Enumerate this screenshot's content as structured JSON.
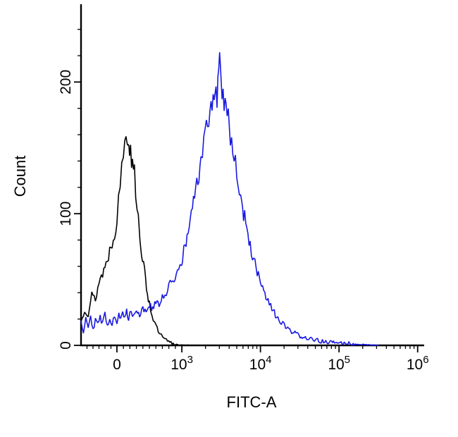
{
  "chart_data": {
    "type": "line",
    "subtype": "flow-cytometry-histogram-overlay",
    "title": "",
    "xlabel": "FITC-A",
    "ylabel": "Count",
    "grid": false,
    "legend": "none",
    "background": "#ffffff",
    "axis_color": "#000000",
    "x_scale": {
      "type": "logicle",
      "anchors": [
        {
          "x": -300,
          "t": 0.0
        },
        {
          "x": 0,
          "t": 0.105
        },
        {
          "x": 1000,
          "t": 0.295
        },
        {
          "x": 1000000,
          "t": 0.985
        }
      ],
      "decade_t": 0.23
    },
    "ylim": [
      0,
      258
    ],
    "y_ticks": [
      {
        "value": 0,
        "label": "0"
      },
      {
        "value": 100,
        "label": "100"
      },
      {
        "value": 200,
        "label": "200"
      }
    ],
    "y_minor_step": 20,
    "x_ticks": [
      {
        "value": 0,
        "base": "0",
        "exp": ""
      },
      {
        "value": 1000,
        "base": "10",
        "exp": "3"
      },
      {
        "value": 10000,
        "base": "10",
        "exp": "4"
      },
      {
        "value": 100000,
        "base": "10",
        "exp": "5"
      },
      {
        "value": 1000000,
        "base": "10",
        "exp": "6"
      }
    ],
    "x_minor_linear": [
      -250,
      -200,
      -150,
      -100,
      -50,
      100,
      200,
      300,
      400,
      500,
      600,
      700,
      800,
      900
    ],
    "x_minor_log_decades": [
      1000,
      10000,
      100000
    ],
    "series": [
      {
        "id": "black",
        "color": "#000000",
        "peak_x": 150,
        "peak_count": 163,
        "points": [
          [
            -300,
            18
          ],
          [
            -270,
            28
          ],
          [
            -240,
            24
          ],
          [
            -210,
            38
          ],
          [
            -180,
            35
          ],
          [
            -150,
            48
          ],
          [
            -120,
            55
          ],
          [
            -90,
            62
          ],
          [
            -60,
            72
          ],
          [
            -30,
            82
          ],
          [
            0,
            95
          ],
          [
            25,
            108
          ],
          [
            50,
            122
          ],
          [
            75,
            135
          ],
          [
            100,
            148
          ],
          [
            120,
            158
          ],
          [
            140,
            163
          ],
          [
            155,
            150
          ],
          [
            165,
            162
          ],
          [
            175,
            152
          ],
          [
            185,
            160
          ],
          [
            195,
            150
          ],
          [
            210,
            154
          ],
          [
            225,
            142
          ],
          [
            240,
            148
          ],
          [
            255,
            138
          ],
          [
            270,
            130
          ],
          [
            290,
            118
          ],
          [
            310,
            108
          ],
          [
            330,
            96
          ],
          [
            355,
            84
          ],
          [
            380,
            72
          ],
          [
            410,
            60
          ],
          [
            440,
            50
          ],
          [
            470,
            40
          ],
          [
            500,
            32
          ],
          [
            540,
            24
          ],
          [
            580,
            17
          ],
          [
            620,
            12
          ],
          [
            670,
            8
          ],
          [
            720,
            5
          ],
          [
            780,
            3
          ],
          [
            850,
            1.5
          ],
          [
            950,
            0.5
          ],
          [
            1050,
            0
          ],
          [
            1300,
            0
          ]
        ]
      },
      {
        "id": "blue",
        "color": "#1a1ae0",
        "peak_x": 2950,
        "peak_count": 216,
        "points": [
          [
            -300,
            20
          ],
          [
            -280,
            10
          ],
          [
            -260,
            22
          ],
          [
            -240,
            14
          ],
          [
            -220,
            24
          ],
          [
            -200,
            12
          ],
          [
            -180,
            20
          ],
          [
            -160,
            15
          ],
          [
            -140,
            22
          ],
          [
            -120,
            16
          ],
          [
            -100,
            24
          ],
          [
            -80,
            15
          ],
          [
            -60,
            21
          ],
          [
            -40,
            17
          ],
          [
            -20,
            23
          ],
          [
            0,
            18
          ],
          [
            30,
            24
          ],
          [
            60,
            19
          ],
          [
            90,
            25
          ],
          [
            120,
            20
          ],
          [
            150,
            26
          ],
          [
            180,
            21
          ],
          [
            220,
            27
          ],
          [
            260,
            22
          ],
          [
            300,
            28
          ],
          [
            350,
            23
          ],
          [
            400,
            29
          ],
          [
            450,
            25
          ],
          [
            500,
            31
          ],
          [
            550,
            27
          ],
          [
            600,
            33
          ],
          [
            650,
            30
          ],
          [
            700,
            36
          ],
          [
            760,
            40
          ],
          [
            820,
            46
          ],
          [
            880,
            52
          ],
          [
            950,
            58
          ],
          [
            1020,
            66
          ],
          [
            1100,
            75
          ],
          [
            1200,
            86
          ],
          [
            1320,
            98
          ],
          [
            1450,
            112
          ],
          [
            1600,
            126
          ],
          [
            1750,
            140
          ],
          [
            1900,
            152
          ],
          [
            2050,
            163
          ],
          [
            2200,
            172
          ],
          [
            2350,
            182
          ],
          [
            2500,
            190
          ],
          [
            2650,
            196
          ],
          [
            2800,
            188
          ],
          [
            2950,
            216
          ],
          [
            3100,
            205
          ],
          [
            3250,
            196
          ],
          [
            3450,
            190
          ],
          [
            3650,
            182
          ],
          [
            3900,
            172
          ],
          [
            4150,
            162
          ],
          [
            4450,
            150
          ],
          [
            4800,
            138
          ],
          [
            5200,
            124
          ],
          [
            5600,
            112
          ],
          [
            6100,
            100
          ],
          [
            6700,
            88
          ],
          [
            7400,
            76
          ],
          [
            8200,
            65
          ],
          [
            9100,
            55
          ],
          [
            10000,
            47
          ],
          [
            11000,
            40
          ],
          [
            12500,
            33
          ],
          [
            14000,
            27
          ],
          [
            16000,
            22
          ],
          [
            18500,
            17
          ],
          [
            21500,
            13
          ],
          [
            25000,
            10
          ],
          [
            30000,
            8
          ],
          [
            36000,
            6
          ],
          [
            44000,
            4.5
          ],
          [
            55000,
            3.5
          ],
          [
            70000,
            2.5
          ],
          [
            90000,
            2
          ],
          [
            120000,
            1.5
          ],
          [
            160000,
            1
          ],
          [
            220000,
            0.5
          ],
          [
            320000,
            0
          ]
        ]
      }
    ]
  }
}
